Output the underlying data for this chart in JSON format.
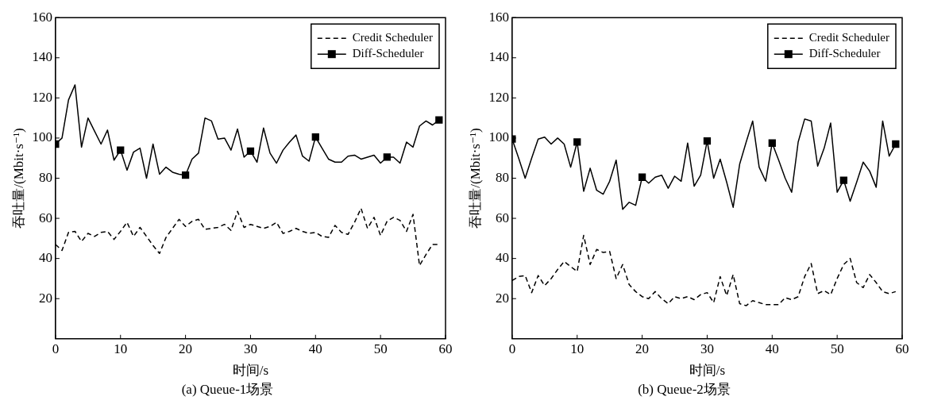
{
  "chart_data": [
    {
      "type": "line",
      "title": "(a) Queue-1场景",
      "xlabel": "时间/s",
      "ylabel": "吞吐量/(Mbit·s⁻¹)",
      "legend": "top right",
      "x": [
        0,
        1,
        2,
        3,
        4,
        5,
        6,
        7,
        8,
        9,
        10,
        11,
        12,
        13,
        14,
        15,
        16,
        17,
        18,
        19,
        20,
        21,
        22,
        23,
        24,
        25,
        26,
        27,
        28,
        29,
        30,
        31,
        32,
        33,
        34,
        35,
        36,
        37,
        38,
        39,
        40,
        41,
        42,
        43,
        44,
        45,
        46,
        47,
        48,
        49,
        50,
        51,
        52,
        53,
        54,
        55,
        56,
        57,
        58,
        59
      ],
      "xlim": [
        0,
        60
      ],
      "xticks": [
        0,
        10,
        20,
        30,
        40,
        50,
        60
      ],
      "ylim": [
        0,
        160
      ],
      "yticks": [
        20,
        40,
        60,
        80,
        100,
        120,
        140,
        160
      ],
      "series": [
        {
          "name": "Credit Scheduler",
          "color": "#000000",
          "line_style": "dashed",
          "values": [
            47,
            44,
            53,
            53.5,
            48.5,
            52.5,
            51,
            53,
            53.5,
            49.5,
            53.5,
            58,
            51,
            55.5,
            51,
            46.5,
            42.5,
            50.5,
            55,
            59.5,
            56,
            58.5,
            59.5,
            54.5,
            55,
            55.5,
            57,
            54,
            63.5,
            55.5,
            57,
            56,
            55,
            56,
            58,
            52.5,
            53.5,
            55,
            53.5,
            52.5,
            53,
            51,
            50.5,
            56.5,
            53,
            52,
            58,
            65,
            55,
            60.5,
            51.5,
            58.5,
            60.5,
            59,
            53.5,
            62,
            36.5,
            42,
            47,
            47
          ]
        },
        {
          "name": "Diff-Scheduler",
          "color": "#000000",
          "line_style": "solid",
          "values": [
            97,
            100,
            119,
            126.5,
            95.5,
            110,
            103.5,
            97,
            104,
            89,
            94,
            84,
            93,
            95,
            80,
            97,
            82,
            85.5,
            83,
            82,
            81.5,
            89.5,
            92.5,
            110,
            108.5,
            99.5,
            100,
            94,
            104.5,
            90.5,
            93.5,
            88,
            105,
            92.5,
            87.5,
            94,
            98,
            101.5,
            91,
            88.5,
            100.5,
            95,
            89.5,
            88,
            88,
            91,
            91.5,
            89.5,
            90.5,
            91.5,
            87.5,
            90.5,
            90.5,
            87.5,
            98,
            95.5,
            106,
            108.5,
            106.5,
            109
          ]
        },
        {
          "type": "scatter",
          "color": "#000000",
          "marker": "square",
          "x": [
            0,
            10,
            20,
            30,
            40,
            51,
            59
          ],
          "values": [
            97,
            94,
            81.5,
            93.5,
            100.5,
            90.5,
            109
          ]
        }
      ]
    },
    {
      "type": "line",
      "title": "(b) Queue-2场景",
      "xlabel": "时间/s",
      "ylabel": "吞吐量/(Mbit·s⁻¹)",
      "legend": "top right",
      "x": [
        0,
        1,
        2,
        3,
        4,
        5,
        6,
        7,
        8,
        9,
        10,
        11,
        12,
        13,
        14,
        15,
        16,
        17,
        18,
        19,
        20,
        21,
        22,
        23,
        24,
        25,
        26,
        27,
        28,
        29,
        30,
        31,
        32,
        33,
        34,
        35,
        36,
        37,
        38,
        39,
        40,
        41,
        42,
        43,
        44,
        45,
        46,
        47,
        48,
        49,
        50,
        51,
        52,
        53,
        54,
        55,
        56,
        57,
        58,
        59
      ],
      "xlim": [
        0,
        60
      ],
      "xticks": [
        0,
        10,
        20,
        30,
        40,
        50,
        60
      ],
      "ylim": [
        0,
        160
      ],
      "yticks": [
        20,
        40,
        60,
        80,
        100,
        120,
        140,
        160
      ],
      "series": [
        {
          "name": "Credit Scheduler",
          "color": "#000000",
          "line_style": "dashed",
          "values": [
            29,
            31,
            31.5,
            23,
            31.5,
            26.5,
            30,
            34.5,
            38.5,
            36,
            33.5,
            51.5,
            37,
            44.5,
            43,
            43.5,
            30,
            37,
            27,
            23.5,
            21,
            20,
            23.5,
            20,
            17.5,
            21,
            20,
            21,
            19.5,
            22,
            23,
            18,
            31,
            21.5,
            32,
            17.5,
            16.5,
            19,
            18,
            17,
            17,
            17,
            20.5,
            19.5,
            21,
            31,
            37.5,
            22.5,
            24,
            22,
            30,
            37,
            40,
            28,
            25.5,
            32,
            28,
            23.5,
            22.5,
            23.5
          ]
        },
        {
          "name": "Diff-Scheduler",
          "color": "#000000",
          "line_style": "solid",
          "values": [
            99.5,
            90,
            80,
            90,
            99.5,
            100.5,
            97,
            100,
            97,
            85.5,
            98,
            73.5,
            85,
            74,
            72,
            78.5,
            89,
            64.5,
            68,
            66.5,
            80.5,
            77.5,
            80.5,
            81.5,
            75,
            81,
            78.5,
            97.5,
            76,
            81.5,
            98.5,
            80,
            89.5,
            78,
            65.5,
            87,
            98,
            108.5,
            85.5,
            78.5,
            97.5,
            89,
            80,
            73,
            98,
            109.5,
            108.5,
            86,
            95,
            107.5,
            73,
            79,
            68.5,
            78,
            88,
            83.5,
            75.5,
            108.5,
            91,
            97
          ]
        },
        {
          "type": "scatter",
          "color": "#000000",
          "marker": "square",
          "x": [
            0,
            10,
            20,
            30,
            40,
            51,
            59
          ],
          "values": [
            99.5,
            98,
            80.5,
            98.5,
            97.5,
            79,
            97
          ]
        }
      ]
    }
  ]
}
